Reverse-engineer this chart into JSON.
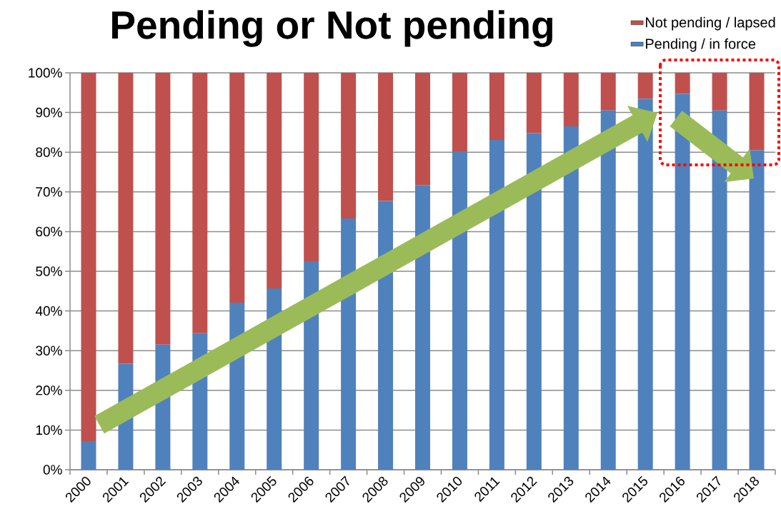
{
  "chart_data": {
    "type": "bar",
    "title": "Pending or Not pending",
    "categories": [
      "2000",
      "2001",
      "2002",
      "2003",
      "2004",
      "2005",
      "2006",
      "2007",
      "2008",
      "2009",
      "2010",
      "2011",
      "2012",
      "2013",
      "2014",
      "2015",
      "2016",
      "2017",
      "2018"
    ],
    "stacked": true,
    "series": [
      {
        "name": "Pending / in force",
        "color": "#4f81bd",
        "values": [
          7.2,
          26.7,
          31.5,
          34.4,
          42.1,
          45.7,
          52.5,
          63.3,
          67.7,
          71.7,
          80.2,
          83.1,
          84.8,
          86.5,
          90.5,
          93.5,
          94.7,
          90.5,
          80.5
        ]
      },
      {
        "name": "Not pending / lapsed",
        "color": "#c0504d",
        "values": [
          92.8,
          73.3,
          68.5,
          65.6,
          57.9,
          54.3,
          47.5,
          36.7,
          32.3,
          28.3,
          19.8,
          16.9,
          15.2,
          13.5,
          9.5,
          6.5,
          5.3,
          9.5,
          19.5
        ]
      }
    ],
    "ylim": [
      0,
      100
    ],
    "yticks": [
      {
        "value": 0,
        "label": "0%"
      },
      {
        "value": 10,
        "label": "10%"
      },
      {
        "value": 20,
        "label": "20%"
      },
      {
        "value": 30,
        "label": "30%"
      },
      {
        "value": 40,
        "label": "40%"
      },
      {
        "value": 50,
        "label": "50%"
      },
      {
        "value": 60,
        "label": "60%"
      },
      {
        "value": 70,
        "label": "70%"
      },
      {
        "value": 80,
        "label": "80%"
      },
      {
        "value": 90,
        "label": "90%"
      },
      {
        "value": 100,
        "label": "100%"
      }
    ],
    "grid": "y",
    "legend": "top right"
  }
}
